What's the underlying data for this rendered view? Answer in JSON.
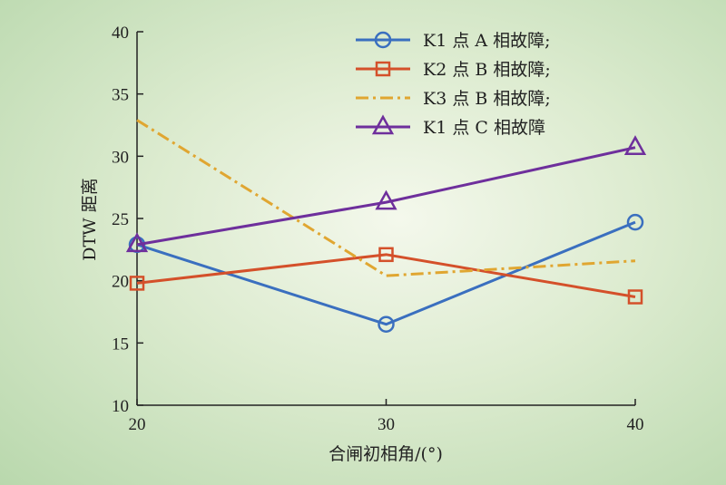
{
  "chart_data": {
    "type": "line",
    "title": "",
    "xlabel": "合闸初相角/(°)",
    "ylabel": "DTW 距离",
    "x": [
      20,
      30,
      40
    ],
    "xticks": [
      20,
      30,
      40
    ],
    "yticks": [
      10,
      15,
      20,
      25,
      30,
      35,
      40
    ],
    "xlim": [
      20,
      40
    ],
    "ylim": [
      10,
      40
    ],
    "grid": false,
    "legend_position": "top-right",
    "series": [
      {
        "name": "K1 点 A 相故障;",
        "values": [
          22.9,
          16.5,
          24.7
        ],
        "color": "#3a6fbf",
        "marker": "circle",
        "dash": "solid"
      },
      {
        "name": "K2 点 B 相故障;",
        "values": [
          19.8,
          22.1,
          18.7
        ],
        "color": "#d4502a",
        "marker": "square",
        "dash": "solid"
      },
      {
        "name": "K3 点 B 相故障;",
        "values": [
          32.9,
          20.4,
          21.6
        ],
        "color": "#e0a631",
        "marker": "none",
        "dash": "dashdot"
      },
      {
        "name": "K1 点 C 相故障",
        "values": [
          22.9,
          26.3,
          30.7
        ],
        "color": "#6e2f9c",
        "marker": "triangle",
        "dash": "solid"
      }
    ]
  }
}
